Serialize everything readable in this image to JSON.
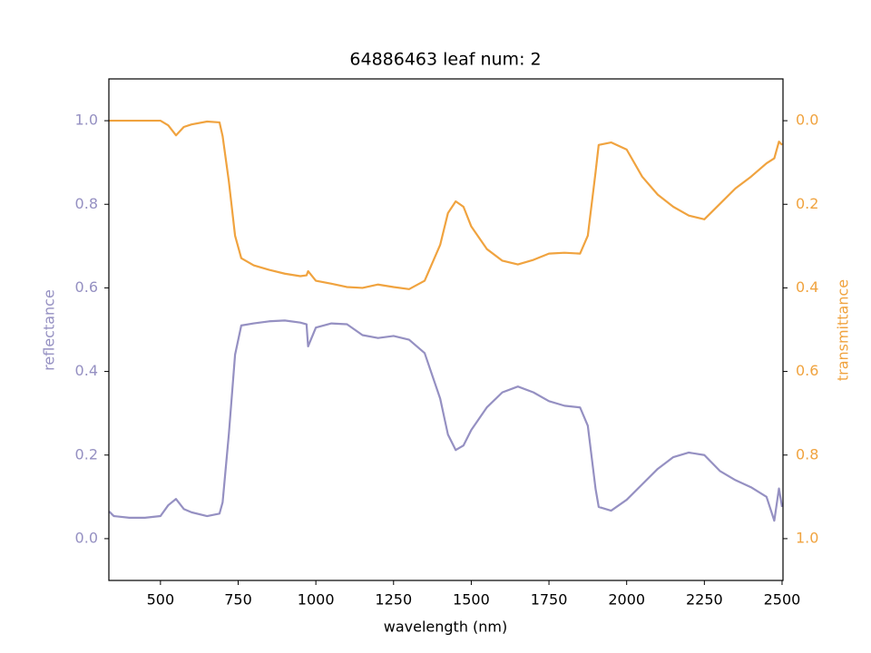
{
  "chart_data": {
    "type": "line",
    "title": "64886463 leaf num: 2",
    "xlabel": "wavelength (nm)",
    "ylabel": "reflectance",
    "y2label": "transmittance",
    "x": [
      335,
      350,
      400,
      450,
      500,
      525,
      550,
      575,
      600,
      650,
      690,
      700,
      720,
      740,
      760,
      800,
      850,
      900,
      950,
      970,
      975,
      1000,
      1050,
      1100,
      1150,
      1200,
      1250,
      1300,
      1350,
      1400,
      1425,
      1450,
      1475,
      1500,
      1550,
      1600,
      1650,
      1700,
      1750,
      1800,
      1850,
      1875,
      1900,
      1910,
      1950,
      2000,
      2050,
      2100,
      2150,
      2200,
      2250,
      2300,
      2350,
      2400,
      2450,
      2475,
      2490,
      2500
    ],
    "series": [
      {
        "name": "reflectance",
        "color": "#9590c2",
        "values": [
          0.065,
          0.054,
          0.05,
          0.05,
          0.054,
          0.08,
          0.095,
          0.071,
          0.063,
          0.054,
          0.06,
          0.087,
          0.25,
          0.44,
          0.51,
          0.515,
          0.52,
          0.522,
          0.517,
          0.513,
          0.46,
          0.505,
          0.515,
          0.513,
          0.487,
          0.48,
          0.485,
          0.476,
          0.444,
          0.335,
          0.249,
          0.212,
          0.223,
          0.26,
          0.314,
          0.35,
          0.364,
          0.35,
          0.329,
          0.318,
          0.314,
          0.27,
          0.119,
          0.076,
          0.067,
          0.093,
          0.13,
          0.167,
          0.195,
          0.206,
          0.2,
          0.162,
          0.14,
          0.123,
          0.1,
          0.043,
          0.12,
          0.076
        ]
      },
      {
        "name": "transmittance",
        "color": "#f0a33f",
        "axis": "y2",
        "values": [
          0.0,
          0.0,
          0.0,
          0.0,
          0.0,
          0.011,
          0.035,
          0.015,
          0.009,
          0.002,
          0.004,
          0.037,
          0.145,
          0.275,
          0.329,
          0.346,
          0.357,
          0.366,
          0.372,
          0.37,
          0.36,
          0.383,
          0.39,
          0.398,
          0.4,
          0.392,
          0.398,
          0.403,
          0.383,
          0.297,
          0.221,
          0.193,
          0.206,
          0.253,
          0.307,
          0.335,
          0.344,
          0.333,
          0.318,
          0.316,
          0.318,
          0.275,
          0.123,
          0.058,
          0.052,
          0.069,
          0.134,
          0.177,
          0.206,
          0.227,
          0.236,
          0.199,
          0.162,
          0.134,
          0.102,
          0.09,
          0.05,
          0.058
        ]
      }
    ],
    "xlim": [
      334,
      2503
    ],
    "xticks": [
      500,
      750,
      1000,
      1250,
      1500,
      1750,
      2000,
      2250,
      2500
    ],
    "ylim": [
      -0.1,
      1.1
    ],
    "yticks": [
      {
        "value": 0,
        "label": "0.0"
      },
      0.2,
      0.4,
      0.6,
      0.8,
      {
        "value": 1,
        "label": "1.0"
      }
    ],
    "y2lim": [
      1.1,
      -0.1
    ],
    "y2ticks": [
      {
        "value": 0,
        "label": "0.0"
      },
      0.2,
      0.4,
      0.6,
      0.8,
      {
        "value": 1,
        "label": "1.0"
      }
    ]
  }
}
